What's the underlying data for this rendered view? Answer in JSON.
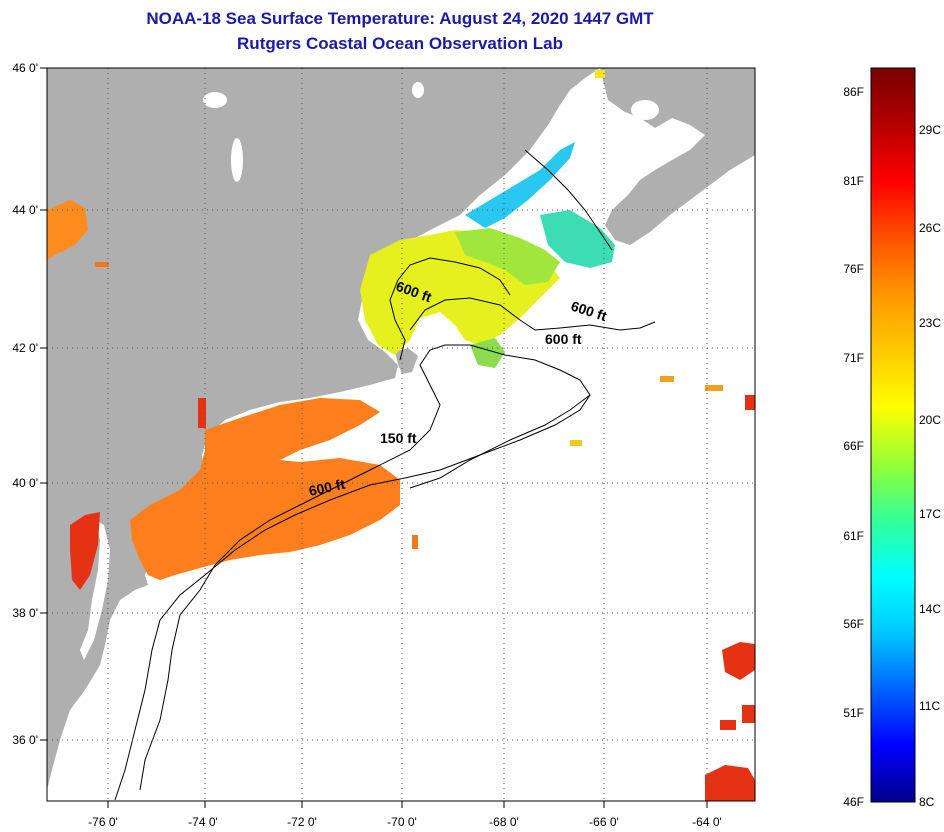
{
  "title": "NOAA-18 Sea Surface Temperature:  August 24, 2020 1447 GMT",
  "subtitle": "Rutgers Coastal Ocean Observation Lab",
  "lat_labels": [
    "46 0'",
    "44 0'",
    "42 0'",
    "40 0'",
    "38 0'",
    "36 0'"
  ],
  "lon_labels": [
    "-76 0'",
    "-74 0'",
    "-72 0'",
    "-70 0'",
    "-68 0'",
    "-66 0'",
    "-64 0'"
  ],
  "contour_labels": [
    "600 ft",
    "600 ft",
    "600 ft",
    "150 ft",
    "600 ft"
  ],
  "colorbar": {
    "f_labels": [
      "86F",
      "81F",
      "76F",
      "71F",
      "66F",
      "61F",
      "56F",
      "51F",
      "46F"
    ],
    "c_labels": [
      "29C",
      "26C",
      "23C",
      "20C",
      "17C",
      "14C",
      "11C",
      "8C"
    ],
    "stops": [
      "#00008b",
      "#0000ff",
      "#0064ff",
      "#00c8ff",
      "#00ffff",
      "#32ff96",
      "#96ff32",
      "#ffff00",
      "#ffc800",
      "#ff9600",
      "#ff5000",
      "#ff0000",
      "#b40000",
      "#780000"
    ]
  },
  "colors": {
    "land": "#afafaf",
    "ocean": "#ffffff",
    "title": "#1a1aa6"
  }
}
